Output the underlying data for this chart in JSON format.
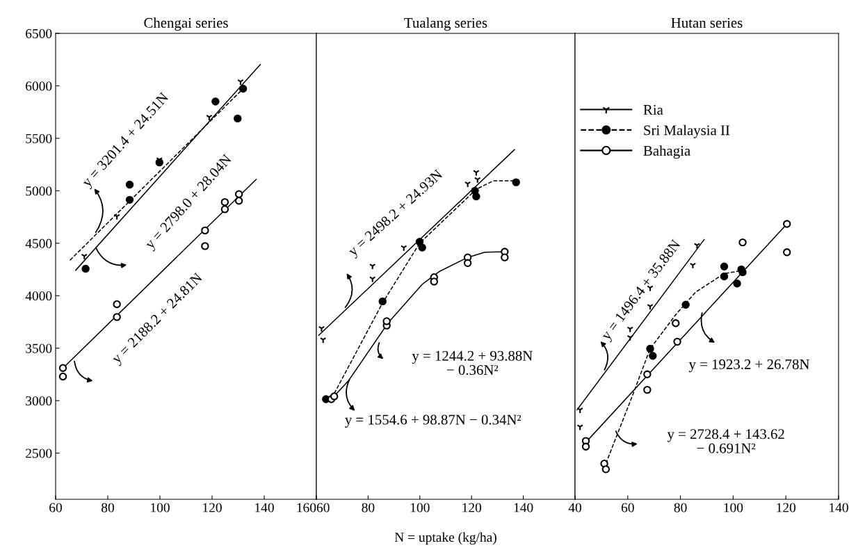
{
  "chart_data": [
    {
      "type": "scatter",
      "title": "Chengai series",
      "xlim": [
        60,
        160
      ],
      "xticks": [
        60,
        80,
        100,
        120,
        140,
        160
      ],
      "ylim": [
        2060,
        6500
      ],
      "yticks": [
        2500,
        3000,
        3500,
        4000,
        4500,
        5000,
        5500,
        6000,
        6500
      ],
      "grid": false,
      "series": [
        {
          "color": "#000000",
          "marker": "cross",
          "x": [
            71.0,
            83.5,
            99.8,
            118.9,
            130.9
          ],
          "values": [
            4378,
            4757,
            5297,
            5703,
            6041
          ]
        },
        {
          "color": "#000000",
          "marker": "circle",
          "x": [
            71.5,
            88.4,
            88.4,
            99.8,
            121.3,
            129.8,
            131.9
          ],
          "values": [
            4257,
            5059,
            4914,
            5270,
            5851,
            5689,
            5973
          ]
        },
        {
          "color": "#ffffff",
          "marker": "circle",
          "x": [
            62.8,
            62.8,
            83.5,
            83.5,
            117.3,
            117.3,
            124.9,
            124.9,
            130.3,
            130.3
          ],
          "values": [
            3311,
            3230,
            3919,
            3797,
            4622,
            4473,
            4892,
            4824,
            4968,
            4905
          ]
        },
        {
          "type": "line",
          "color": "#000000",
          "line_style": "solid",
          "x": [
            67.7,
            138.5
          ],
          "values": [
            4243,
            6203
          ]
        },
        {
          "type": "line",
          "color": "#000000",
          "line_style": "dashed",
          "x": [
            65.5,
            133
          ],
          "values": [
            4338,
            6000
          ]
        },
        {
          "type": "line",
          "color": "#000000",
          "line_style": "solid",
          "x": [
            63.4,
            136.9
          ],
          "values": [
            3324,
            5108
          ]
        }
      ],
      "annotations": [
        "y = 3201.4 + 24.51N",
        "y = 2798.0 + 28.04N",
        "y = 2188.2 + 24.81N"
      ]
    },
    {
      "type": "scatter",
      "title": "Tualang series",
      "xlabel": "N = uptake (kg/ha)",
      "xlim": [
        60,
        160
      ],
      "xticks": [
        60,
        80,
        100,
        120,
        140
      ],
      "ylim": [
        2060,
        6500
      ],
      "tick_labels": "x",
      "grid": false,
      "series": [
        {
          "color": "#000000",
          "marker": "cross",
          "x": [
            62.0,
            62.6,
            81.7,
            81.7,
            93.8,
            118.5,
            121.8,
            122.3
          ],
          "values": [
            3689,
            3581,
            4284,
            4162,
            4459,
            5067,
            5176,
            5108
          ]
        },
        {
          "color": "#000000",
          "marker": "circle",
          "x": [
            63.7,
            85.6,
            99.9,
            100.9,
            121.3,
            121.8,
            137.2
          ],
          "values": [
            3014,
            3946,
            4514,
            4459,
            5000,
            4946,
            5081
          ]
        },
        {
          "color": "#ffffff",
          "marker": "circle",
          "x": [
            65.8,
            66.9,
            87.2,
            87.2,
            105.5,
            105.5,
            118.5,
            118.5,
            132.8,
            132.8
          ],
          "values": [
            3014,
            3041,
            3716,
            3757,
            4176,
            4135,
            4365,
            4311,
            4419,
            4365
          ]
        },
        {
          "type": "line",
          "color": "#000000",
          "line_style": "solid",
          "x": [
            60.9,
            136.6
          ],
          "values": [
            3622,
            5392
          ]
        },
        {
          "type": "line",
          "color": "#000000",
          "line_style": "dashed",
          "x": [
            66.9,
            85.6,
            99.9,
            121.8,
            128.4,
            137.2
          ],
          "values": [
            3068,
            3932,
            4500,
            5014,
            5095,
            5095
          ]
        },
        {
          "type": "line",
          "color": "#000000",
          "line_style": "solid",
          "x": [
            65.8,
            72.4,
            87.8,
            100.9,
            107.5,
            118.5,
            125.1,
            132.8
          ],
          "values": [
            3014,
            3189,
            3743,
            4108,
            4230,
            4365,
            4414,
            4419
          ]
        }
      ],
      "annotations": [
        "y = 2498.2 + 24.93N",
        "y = 1244.2 + 93.88N\n− 0.36N²",
        "y = 1554.6 + 98.87N − 0.34N²"
      ]
    },
    {
      "type": "scatter",
      "title": "Hutan series",
      "xlim": [
        40,
        140
      ],
      "xticks": [
        40,
        60,
        80,
        100,
        120,
        140
      ],
      "ylim": [
        2060,
        6500
      ],
      "tick_labels": "x",
      "grid": false,
      "legend": "top left",
      "series": [
        {
          "name": "Ria",
          "color": "#000000",
          "marker": "cross",
          "line_style": "solid",
          "x": [
            41.9,
            41.9,
            60.9,
            60.9,
            68.5,
            68.5,
            84.7,
            86.3
          ],
          "values": [
            2913,
            2751,
            3684,
            3603,
            3900,
            4076,
            4292,
            4481
          ]
        },
        {
          "name": "Sri Malaysia II",
          "color": "#000000",
          "marker": "circle",
          "line_style": "dashed",
          "x": [
            68.5,
            69.5,
            82,
            96.6,
            96.6,
            101.5,
            103.6,
            103.1
          ],
          "values": [
            3495,
            3427,
            3914,
            4278,
            4184,
            4116,
            4224,
            4251
          ]
        },
        {
          "name": "Bahagia",
          "color": "#ffffff",
          "marker": "circle",
          "line_style": "solid",
          "x": [
            44.1,
            44.1,
            51.1,
            51.7,
            67.4,
            67.4,
            78.2,
            78.8,
            103.6,
            120.4,
            120.4
          ],
          "values": [
            2616,
            2562,
            2400,
            2346,
            3251,
            3103,
            3738,
            3562,
            4508,
            4684,
            4414
          ]
        },
        {
          "type": "line",
          "color": "#000000",
          "line_style": "solid",
          "x": [
            40.8,
            89
          ],
          "values": [
            2913,
            4535
          ]
        },
        {
          "type": "line",
          "color": "#000000",
          "line_style": "dashed",
          "x": [
            51.7,
            62,
            68.5,
            78.2,
            85.8,
            96.6,
            103.1
          ],
          "values": [
            2400,
            3062,
            3495,
            3819,
            4035,
            4211,
            4238
          ]
        },
        {
          "type": "line",
          "color": "#000000",
          "line_style": "solid",
          "x": [
            44.1,
            120.4
          ],
          "values": [
            2603,
            4684
          ]
        }
      ],
      "annotations": [
        "y = 1496.4 + 35.88N",
        "y = 1923.2 + 26.78N",
        "y = 2728.4 + 143.62\n− 0.691N²"
      ]
    }
  ]
}
